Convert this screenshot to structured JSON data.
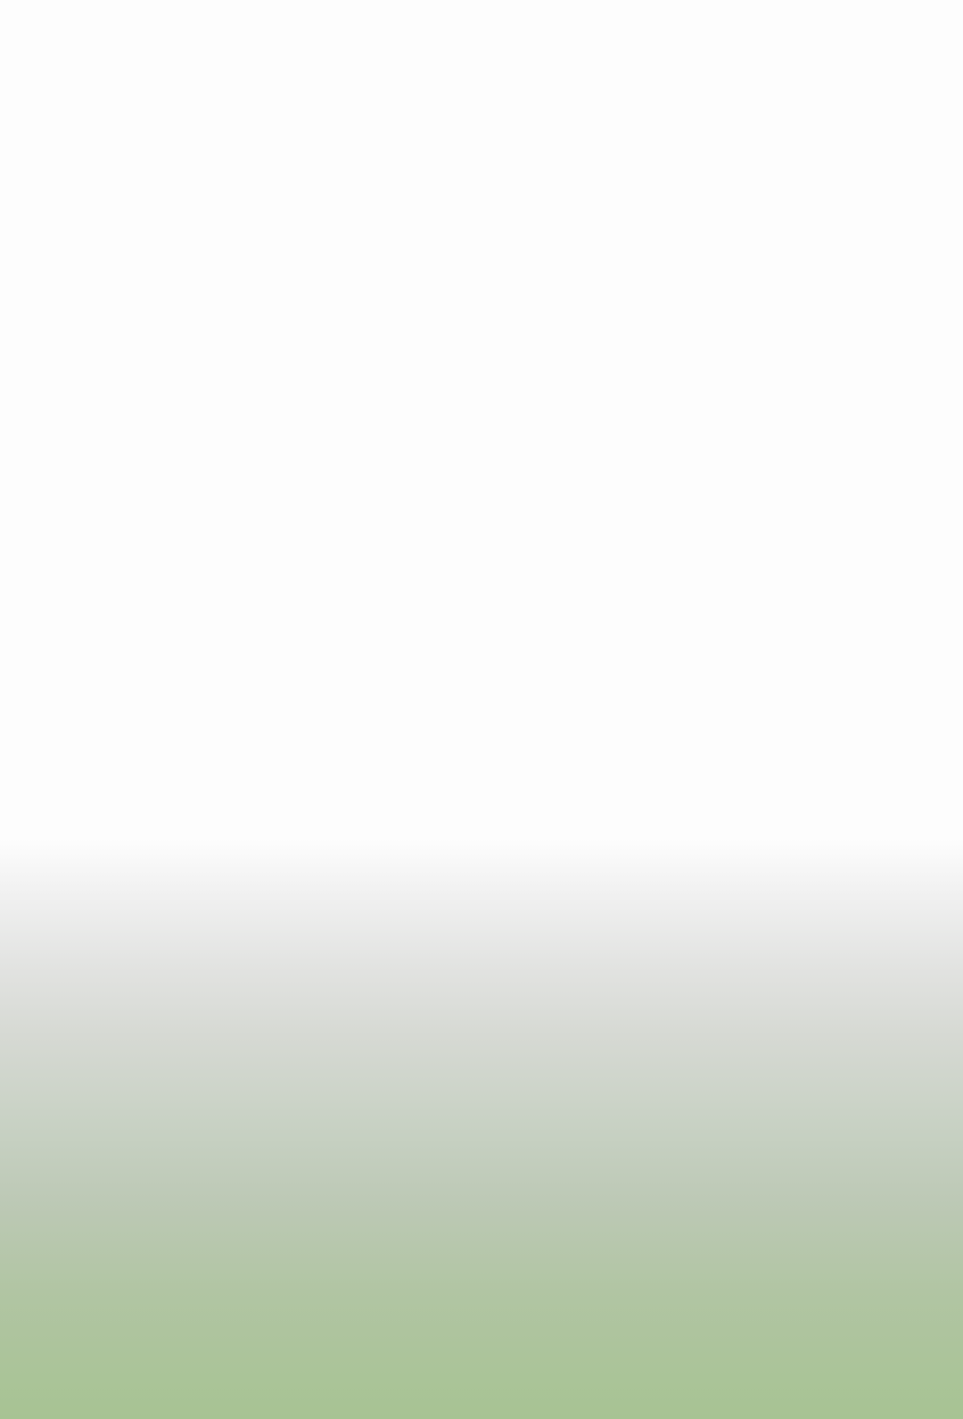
{
  "screen": {
    "background_color": "#fdfdfd",
    "gradient_colors": [
      "#fdfdfd",
      "#f0f0f0",
      "#e2e3e1",
      "#d6d9d3",
      "#c9d2c5",
      "#bdc9b6",
      "#b1c5a3",
      "#a7c393"
    ]
  }
}
